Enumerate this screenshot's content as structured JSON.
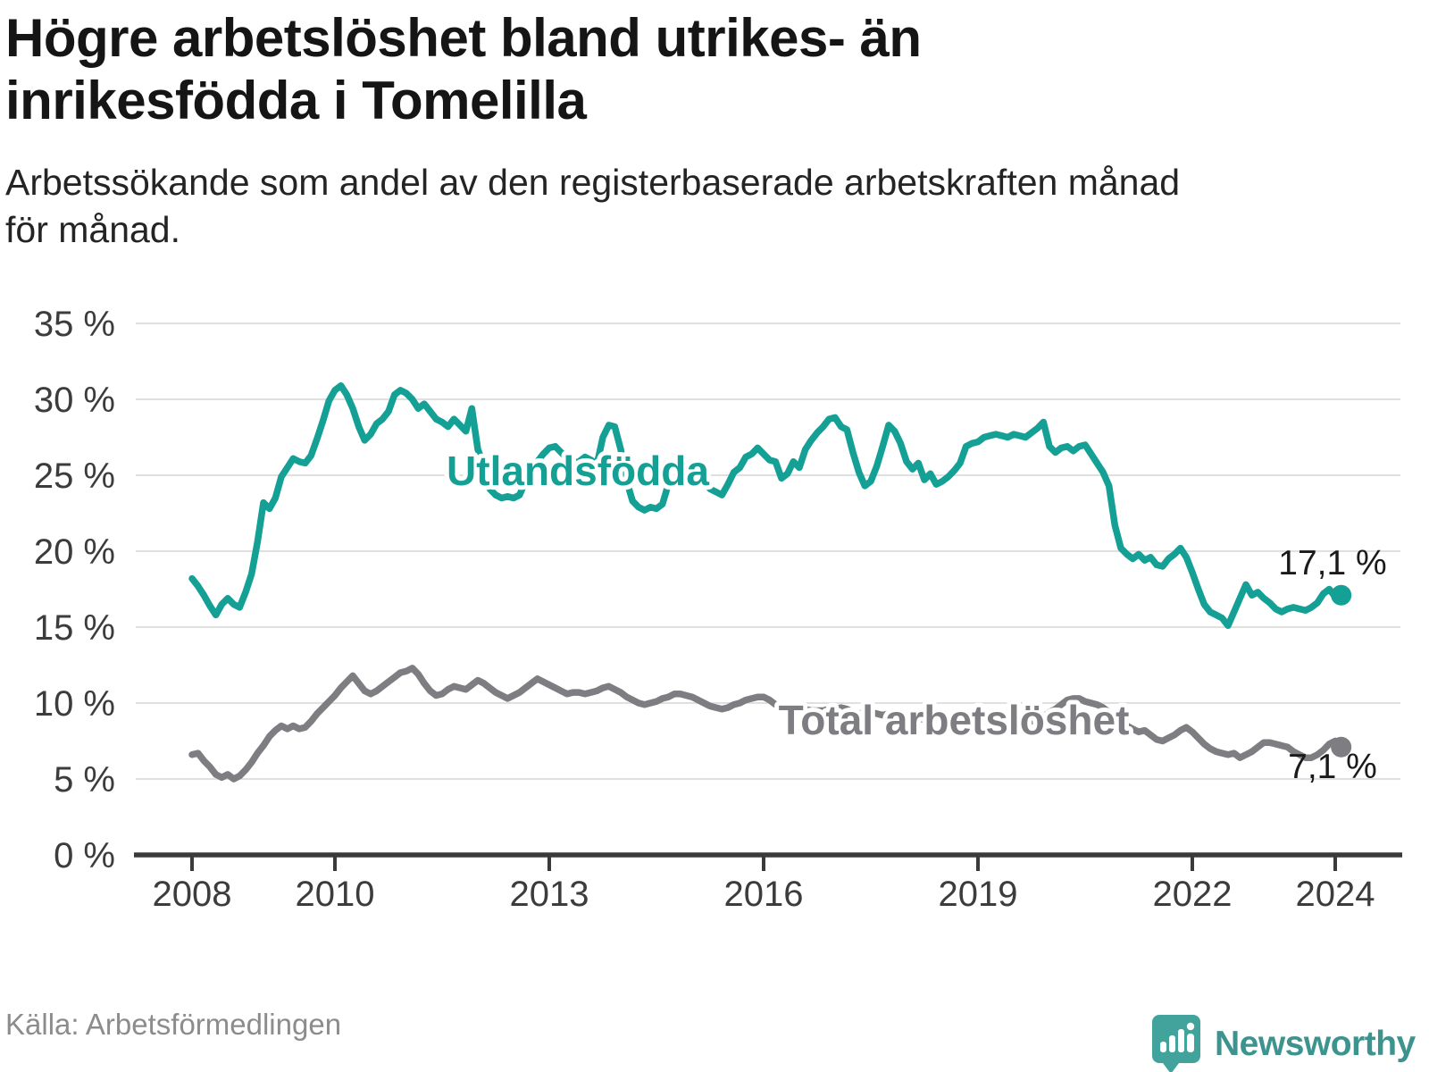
{
  "header": {
    "title": "Högre arbetslöshet bland utrikes- än\ninrikesfödda i Tomelilla",
    "subtitle": "Arbetssökande som andel av den registerbaserade arbetskraften månad\nför månad."
  },
  "footer": {
    "source": "Källa: Arbetsförmedlingen",
    "brand": "Newsworthy",
    "brand_icon": "newsworthy-chart-marker-icon"
  },
  "colors": {
    "series_utlandsfodda": "#14a095",
    "series_total": "#7d7d82",
    "grid": "#e0e0e0",
    "axis": "#3a3a3a",
    "tick_label": "#3c3c3c",
    "value_label": "#1a1a1a",
    "brand_teal": "#3d938e",
    "title_text": "#151515",
    "source_text": "#8c8c8c"
  },
  "chart_data": {
    "type": "line",
    "title": "Högre arbetslöshet bland utrikes- än inrikesfödda i Tomelilla",
    "subtitle": "Arbetssökande som andel av den registerbaserade arbetskraften månad för månad.",
    "xlabel": "",
    "ylabel": "",
    "grid": "horizontal",
    "legend_position": "inline-on-chart",
    "ylim": [
      0,
      35
    ],
    "x_start_year": 2008,
    "x_interval": "monthly",
    "x_end": "2024-02",
    "y_ticks": [
      {
        "v": 35,
        "label": "35 %"
      },
      {
        "v": 30,
        "label": "30 %"
      },
      {
        "v": 25,
        "label": "25 %"
      },
      {
        "v": 20,
        "label": "20 %"
      },
      {
        "v": 15,
        "label": "15 %"
      },
      {
        "v": 10,
        "label": "10 %"
      },
      {
        "v": 5,
        "label": "5 %"
      },
      {
        "v": 0,
        "label": "0 %"
      }
    ],
    "x_ticks": [
      {
        "x": 2008,
        "label": "2008"
      },
      {
        "x": 2010,
        "label": "2010"
      },
      {
        "x": 2013,
        "label": "2013"
      },
      {
        "x": 2016,
        "label": "2016"
      },
      {
        "x": 2019,
        "label": "2019"
      },
      {
        "x": 2022,
        "label": "2022"
      },
      {
        "x": 2024,
        "label": "2024"
      }
    ],
    "series": [
      {
        "name": "Utlandsfödda",
        "color": "#14a095",
        "end_label": "17,1 %",
        "end_value": 17.1,
        "values": [
          18.2,
          17.7,
          17.1,
          16.4,
          15.8,
          16.5,
          16.9,
          16.5,
          16.3,
          17.3,
          18.5,
          20.6,
          23.2,
          22.8,
          23.5,
          24.9,
          25.5,
          26.1,
          25.9,
          25.8,
          26.3,
          27.4,
          28.6,
          29.9,
          30.6,
          30.9,
          30.3,
          29.4,
          28.2,
          27.3,
          27.7,
          28.4,
          28.7,
          29.2,
          30.3,
          30.6,
          30.4,
          30.0,
          29.4,
          29.7,
          29.2,
          28.7,
          28.5,
          28.2,
          28.7,
          28.3,
          27.9,
          29.4,
          26.7,
          25.7,
          24.1,
          23.7,
          23.5,
          23.6,
          23.5,
          23.7,
          24.6,
          25.4,
          25.9,
          26.4,
          26.8,
          26.9,
          26.5,
          26.1,
          25.8,
          25.9,
          26.2,
          26.0,
          25.7,
          27.5,
          28.3,
          28.2,
          26.7,
          24.6,
          23.3,
          22.9,
          22.7,
          22.9,
          22.8,
          23.1,
          24.4,
          24.8,
          25.2,
          24.9,
          25.3,
          24.8,
          24.5,
          24.1,
          23.9,
          23.7,
          24.4,
          25.2,
          25.5,
          26.2,
          26.4,
          26.8,
          26.4,
          26.0,
          25.9,
          24.8,
          25.1,
          25.9,
          25.5,
          26.7,
          27.3,
          27.8,
          28.2,
          28.7,
          28.8,
          28.2,
          28.0,
          26.5,
          25.2,
          24.3,
          24.6,
          25.6,
          26.9,
          28.3,
          27.9,
          27.1,
          25.9,
          25.4,
          25.8,
          24.7,
          25.1,
          24.4,
          24.6,
          24.9,
          25.3,
          25.8,
          26.9,
          27.1,
          27.2,
          27.5,
          27.6,
          27.7,
          27.6,
          27.5,
          27.7,
          27.6,
          27.5,
          27.8,
          28.1,
          28.5,
          26.9,
          26.5,
          26.8,
          26.9,
          26.6,
          26.9,
          27.0,
          26.4,
          25.8,
          25.2,
          24.3,
          21.7,
          20.2,
          19.8,
          19.5,
          19.8,
          19.4,
          19.6,
          19.1,
          19.0,
          19.5,
          19.8,
          20.2,
          19.6,
          18.6,
          17.5,
          16.5,
          16.0,
          15.8,
          15.6,
          15.1,
          16.0,
          16.9,
          17.8,
          17.1,
          17.3,
          16.9,
          16.6,
          16.2,
          16.0,
          16.2,
          16.3,
          16.2,
          16.1,
          16.3,
          16.6,
          17.2,
          17.5,
          17.0,
          17.1
        ]
      },
      {
        "name": "Total arbetslöshet",
        "color": "#7d7d82",
        "end_label": "7,1 %",
        "end_value": 7.1,
        "values": [
          6.6,
          6.7,
          6.2,
          5.8,
          5.3,
          5.1,
          5.3,
          5.0,
          5.2,
          5.6,
          6.1,
          6.7,
          7.2,
          7.8,
          8.2,
          8.5,
          8.3,
          8.5,
          8.3,
          8.4,
          8.8,
          9.3,
          9.7,
          10.1,
          10.5,
          11.0,
          11.4,
          11.8,
          11.3,
          10.8,
          10.6,
          10.8,
          11.1,
          11.4,
          11.7,
          12.0,
          12.1,
          12.3,
          11.9,
          11.3,
          10.8,
          10.5,
          10.6,
          10.9,
          11.1,
          11.0,
          10.9,
          11.2,
          11.5,
          11.3,
          11.0,
          10.7,
          10.5,
          10.3,
          10.5,
          10.7,
          11.0,
          11.3,
          11.6,
          11.4,
          11.2,
          11.0,
          10.8,
          10.6,
          10.7,
          10.7,
          10.6,
          10.7,
          10.8,
          11.0,
          11.1,
          10.9,
          10.7,
          10.4,
          10.2,
          10.0,
          9.9,
          10.0,
          10.1,
          10.3,
          10.4,
          10.6,
          10.6,
          10.5,
          10.4,
          10.2,
          10.0,
          9.8,
          9.7,
          9.6,
          9.7,
          9.9,
          10.0,
          10.2,
          10.3,
          10.4,
          10.4,
          10.2,
          9.9,
          9.8,
          9.9,
          9.9,
          9.8,
          9.6,
          9.5,
          9.5,
          9.5,
          9.6,
          9.6,
          9.7,
          9.6,
          9.4,
          9.3,
          9.4,
          9.4,
          9.3,
          9.2,
          9.3,
          9.4,
          9.3,
          9.2,
          9.1,
          9.0,
          8.9,
          8.8,
          8.9,
          8.9,
          8.8,
          8.7,
          8.8,
          8.8,
          8.7,
          8.6,
          8.5,
          8.5,
          8.4,
          8.4,
          8.4,
          8.5,
          8.6,
          8.7,
          8.8,
          8.9,
          9.1,
          9.4,
          9.6,
          9.9,
          10.2,
          10.3,
          10.3,
          10.1,
          10.0,
          9.9,
          9.7,
          9.4,
          9.0,
          8.7,
          8.5,
          8.3,
          8.1,
          8.2,
          7.9,
          7.6,
          7.5,
          7.7,
          7.9,
          8.2,
          8.4,
          8.1,
          7.7,
          7.3,
          7.0,
          6.8,
          6.7,
          6.6,
          6.7,
          6.4,
          6.6,
          6.8,
          7.1,
          7.4,
          7.4,
          7.3,
          7.2,
          7.1,
          6.8,
          6.6,
          6.4,
          6.4,
          6.6,
          6.9,
          7.3,
          7.5,
          7.1
        ]
      }
    ]
  }
}
